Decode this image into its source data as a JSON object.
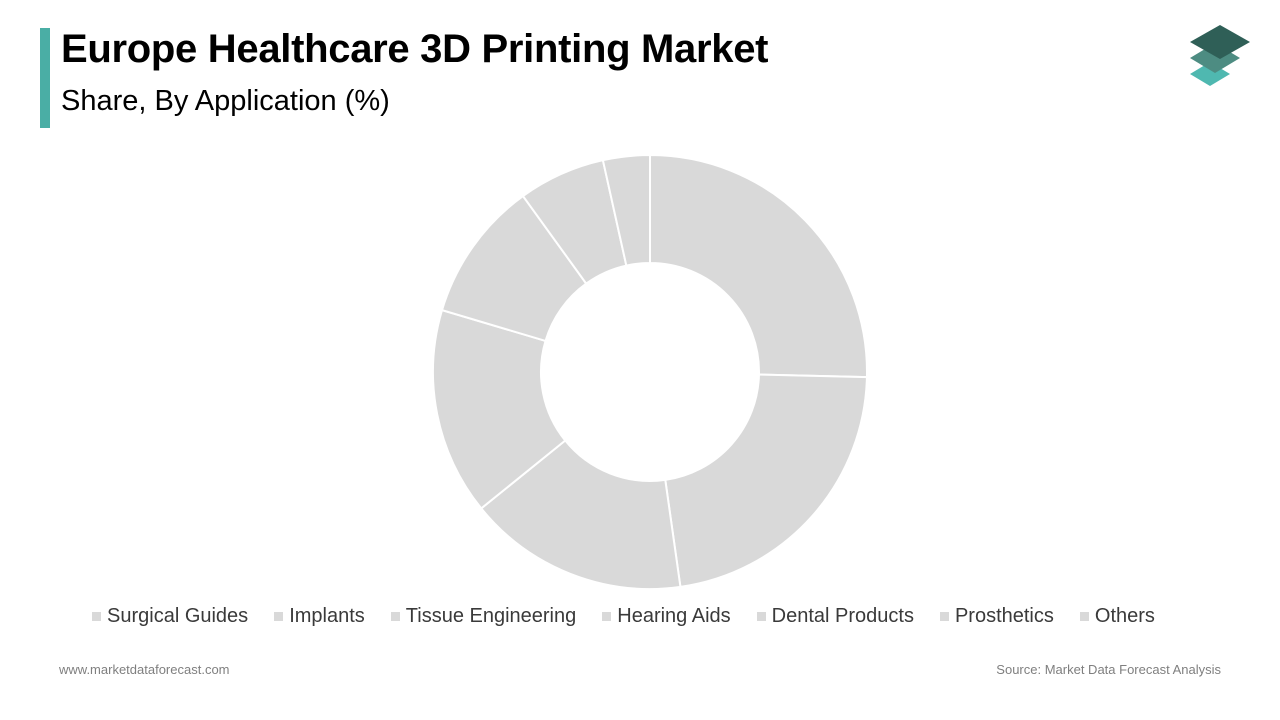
{
  "header": {
    "title": "Europe Healthcare 3D Printing Market",
    "subtitle": "Share, By Application (%)"
  },
  "colors": {
    "accent": "#4aaea5",
    "slice_fill": "#d9d9d9",
    "slice_stroke": "#ffffff",
    "legend_swatch": "#d9d9d9",
    "logo_dark": "#2f5f57",
    "logo_mid": "#4d8c82",
    "logo_light": "#4fb8b0"
  },
  "logo": {
    "icon": "stacked-layers-icon"
  },
  "chart_data": {
    "type": "pie",
    "donut": true,
    "categories": [
      "Surgical Guides",
      "Implants",
      "Tissue Engineering",
      "Hearing Aids",
      "Dental Products",
      "Prosthetics",
      "Others"
    ],
    "values": [
      25.5,
      22.5,
      16.5,
      15.5,
      10.5,
      6.5,
      3.5
    ],
    "legend_position": "bottom"
  },
  "footer": {
    "website": "www.marketdataforecast.com",
    "source": "Source: Market Data Forecast Analysis"
  }
}
